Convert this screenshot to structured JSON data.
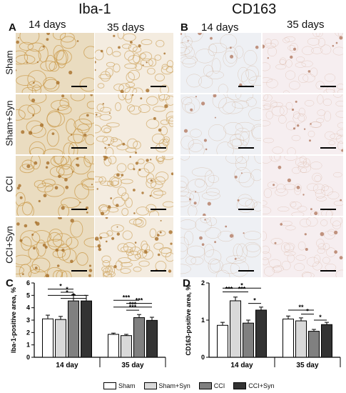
{
  "figure": {
    "titles": {
      "left": "Iba-1",
      "right": "CD163"
    },
    "panel_labels": {
      "a": "A",
      "b": "B",
      "c": "C",
      "d": "D"
    },
    "columns": {
      "c1": "14 days",
      "c2": "35 days",
      "c3": "14 days",
      "c4": "35 days"
    },
    "rows": [
      "Sham",
      "Sham+Syn",
      "CCI",
      "CCI+Syn"
    ],
    "colors": {
      "sham": "#ffffff",
      "sham_syn": "#d9d9d9",
      "cci": "#808080",
      "cci_syn": "#333333"
    }
  },
  "legend": [
    "Sham",
    "Sham+Syn",
    "CCI",
    "CCI+Syn"
  ],
  "chart_data": [
    {
      "type": "bar",
      "panel": "C",
      "ylabel": "Iba-1-positive area, %",
      "ylim": [
        0,
        6
      ],
      "yticks": [
        "0",
        "1",
        "2",
        "3",
        "4",
        "5",
        "6"
      ],
      "categories": [
        "14 day",
        "35 day"
      ],
      "series": [
        {
          "name": "Sham",
          "values": [
            3.1,
            1.85
          ],
          "errors": [
            0.3,
            0.1
          ]
        },
        {
          "name": "Sham+Syn",
          "values": [
            3.05,
            1.75
          ],
          "errors": [
            0.25,
            0.1
          ]
        },
        {
          "name": "CCI",
          "values": [
            4.55,
            3.2
          ],
          "errors": [
            0.5,
            0.25
          ]
        },
        {
          "name": "CCI+Syn",
          "values": [
            4.55,
            2.98
          ],
          "errors": [
            0.45,
            0.25
          ]
        }
      ],
      "significance": [
        {
          "group": 0,
          "from": 0,
          "to": 2,
          "label": "*",
          "y": 5.5
        },
        {
          "group": 0,
          "from": 1,
          "to": 2,
          "label": "*",
          "y": 5.25
        },
        {
          "group": 0,
          "from": 0,
          "to": 3,
          "label": "*",
          "y": 5.0
        },
        {
          "group": 0,
          "from": 1,
          "to": 3,
          "label": "*",
          "y": 4.75
        },
        {
          "group": 1,
          "from": 0,
          "to": 2,
          "label": "***",
          "y": 4.6
        },
        {
          "group": 1,
          "from": 1,
          "to": 3,
          "label": "***",
          "y": 4.35
        },
        {
          "group": 1,
          "from": 0,
          "to": 3,
          "label": "***",
          "y": 4.05
        },
        {
          "group": 1,
          "from": 1,
          "to": 2,
          "label": "***",
          "y": 3.8
        }
      ]
    },
    {
      "type": "bar",
      "panel": "D",
      "ylabel": "CD163-positive area, %",
      "ylim": [
        0,
        2
      ],
      "yticks": [
        "0",
        "1",
        "2"
      ],
      "categories": [
        "14 day",
        "35 day"
      ],
      "series": [
        {
          "name": "Sham",
          "values": [
            0.86,
            1.03
          ],
          "errors": [
            0.08,
            0.08
          ]
        },
        {
          "name": "Sham+Syn",
          "values": [
            1.52,
            0.98
          ],
          "errors": [
            0.1,
            0.08
          ]
        },
        {
          "name": "CCI",
          "values": [
            0.92,
            0.7
          ],
          "errors": [
            0.08,
            0.05
          ]
        },
        {
          "name": "CCI+Syn",
          "values": [
            1.27,
            0.88
          ],
          "errors": [
            0.08,
            0.06
          ]
        }
      ],
      "significance": [
        {
          "group": 0,
          "from": 0,
          "to": 3,
          "label": "*",
          "y": 1.86
        },
        {
          "group": 0,
          "from": 0,
          "to": 1,
          "label": "***",
          "y": 1.76
        },
        {
          "group": 0,
          "from": 1,
          "to": 2,
          "label": "***",
          "y": 1.76
        },
        {
          "group": 0,
          "from": 2,
          "to": 3,
          "label": "*",
          "y": 1.45
        },
        {
          "group": 1,
          "from": 0,
          "to": 2,
          "label": "**",
          "y": 1.27
        },
        {
          "group": 1,
          "from": 1,
          "to": 2,
          "label": "*",
          "y": 1.16
        },
        {
          "group": 1,
          "from": 2,
          "to": 3,
          "label": "*",
          "y": 1.0
        }
      ]
    }
  ]
}
